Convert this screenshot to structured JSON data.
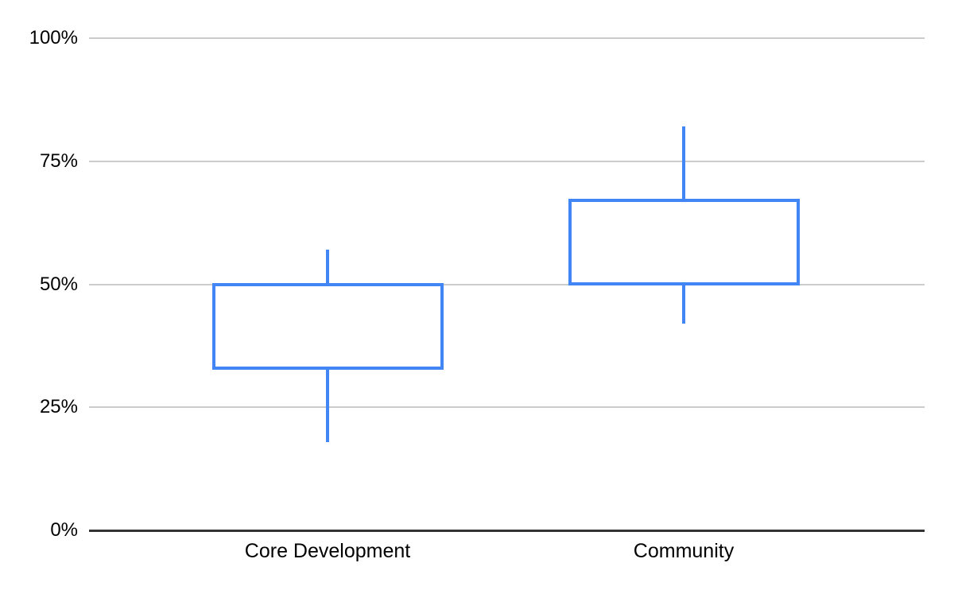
{
  "chart_data": {
    "type": "candlestick",
    "title": "",
    "categories": [
      "Core Development",
      "Community"
    ],
    "points": [
      {
        "category": "Core Development",
        "low": 18,
        "open": 33,
        "close": 50,
        "high": 57
      },
      {
        "category": "Community",
        "low": 42,
        "open": 50,
        "close": 67,
        "high": 82
      }
    ],
    "unit": "%",
    "ylim": [
      0,
      100
    ],
    "yticks": [
      {
        "value": 0,
        "label": "0%"
      },
      {
        "value": 25,
        "label": "25%"
      },
      {
        "value": 50,
        "label": "50%"
      },
      {
        "value": 75,
        "label": "75%"
      },
      {
        "value": 100,
        "label": "100%"
      }
    ],
    "grid": true,
    "legend": "none",
    "colors": {
      "candle": "#4285f4",
      "gridline": "#cccccc",
      "axis": "#333333",
      "text": "#000000",
      "background": "#ffffff"
    }
  }
}
